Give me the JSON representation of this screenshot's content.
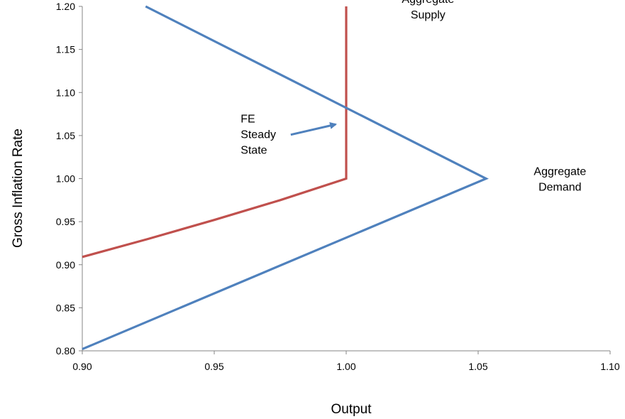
{
  "chart_data": {
    "type": "line",
    "xlabel": "Output",
    "ylabel": "Gross Inflation Rate",
    "xlim": [
      0.9,
      1.1
    ],
    "ylim": [
      0.8,
      1.2
    ],
    "x_ticks": [
      "0.90",
      "0.95",
      "1.00",
      "1.05",
      "1.10"
    ],
    "y_ticks": [
      "0.80",
      "0.85",
      "0.90",
      "0.95",
      "1.00",
      "1.05",
      "1.10",
      "1.15",
      "1.20"
    ],
    "grid": false,
    "series": [
      {
        "name": "Aggregate Supply",
        "color": "#c0504d",
        "points": [
          [
            0.9,
            0.909
          ],
          [
            0.925,
            0.93
          ],
          [
            0.95,
            0.952
          ],
          [
            0.975,
            0.975
          ],
          [
            1.0,
            1.0
          ],
          [
            1.0,
            1.2
          ]
        ]
      },
      {
        "name": "Aggregate Demand",
        "color": "#4f81bd",
        "points": [
          [
            0.924,
            1.2
          ],
          [
            1.053,
            1.0
          ],
          [
            0.9,
            0.802
          ]
        ]
      }
    ],
    "annotations": [
      {
        "id": "as-label",
        "lines": [
          "Aggregate",
          "Supply"
        ],
        "at": [
          1.031,
          1.2
        ]
      },
      {
        "id": "ad-label",
        "lines": [
          "Aggregate",
          "Demand"
        ],
        "at": [
          1.081,
          1.0
        ]
      },
      {
        "id": "fe-label",
        "lines": [
          "FE",
          "Steady",
          "State"
        ],
        "at": [
          0.96,
          1.052
        ]
      }
    ],
    "arrow": {
      "from": [
        0.979,
        1.051
      ],
      "to": [
        0.996,
        1.063
      ],
      "color": "#4f81bd"
    }
  }
}
